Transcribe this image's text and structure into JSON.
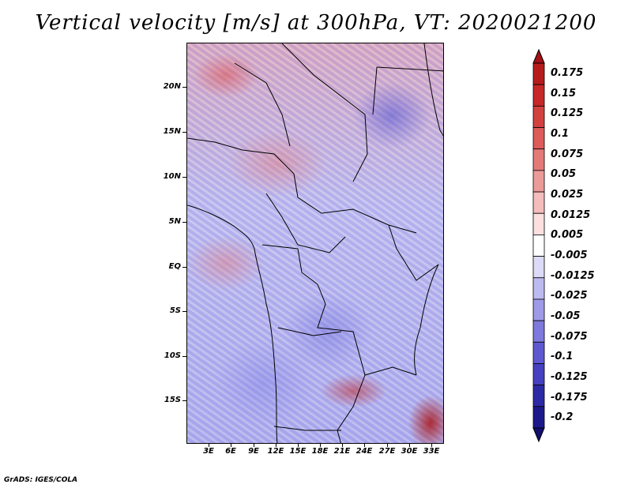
{
  "title": "Vertical velocity [m/s] at 300hPa, VT: 2020021200",
  "credit": "GrADS: IGES/COLA",
  "lat_labels": [
    "20N",
    "15N",
    "10N",
    "5N",
    "EQ",
    "5S",
    "10S",
    "15S"
  ],
  "lon_labels": [
    "3E",
    "6E",
    "9E",
    "12E",
    "15E",
    "18E",
    "21E",
    "24E",
    "27E",
    "30E",
    "33E"
  ],
  "colorbar": {
    "labels": [
      "0.175",
      "0.15",
      "0.125",
      "0.1",
      "0.075",
      "0.05",
      "0.025",
      "0.0125",
      "0.005",
      "-0.005",
      "-0.0125",
      "-0.025",
      "-0.05",
      "-0.075",
      "-0.1",
      "-0.125",
      "-0.175",
      "-0.2"
    ],
    "colors": [
      "#a50f15",
      "#b71c1c",
      "#c62828",
      "#d3413f",
      "#dd5b59",
      "#e47a78",
      "#ec9a98",
      "#f4bcbb",
      "#fbe0df",
      "#ffffff",
      "#dcdaf6",
      "#bdbaf0",
      "#9e9ae8",
      "#7e79dd",
      "#5f59d1",
      "#4541c0",
      "#2d2aa6",
      "#1c1a8a",
      "#120f6e"
    ]
  }
}
